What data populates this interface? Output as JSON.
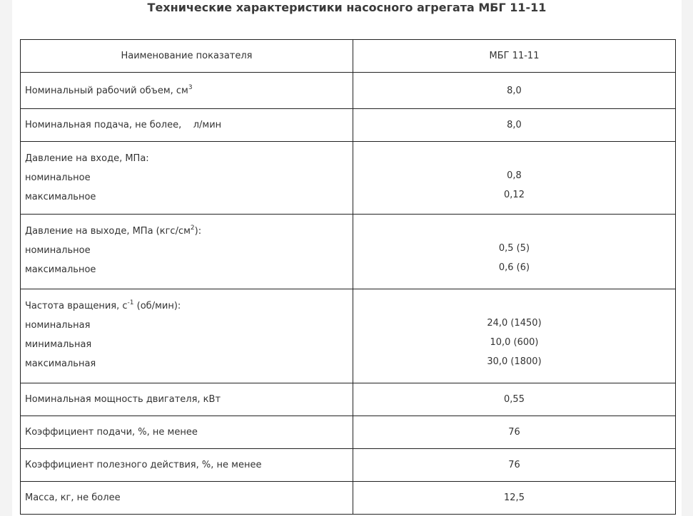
{
  "title": "Технические характеристики насосного агрегата МБГ 11-11",
  "table": {
    "header": [
      "Наименование показателя",
      "МБГ 11-11"
    ],
    "rows": [
      {
        "label": "Номинальный рабочий объем, см",
        "sup": "3",
        "after": "",
        "sub": [],
        "values": [
          "8,0"
        ]
      },
      {
        "label": "Номинальная подача, не более,    л/мин",
        "sup": "",
        "after": "",
        "sub": [],
        "values": [
          "8,0"
        ]
      },
      {
        "label": "Давление на входе, МПа:",
        "sup": "",
        "after": "",
        "sub": [
          "номинальное",
          "максимальное"
        ],
        "values": [
          "0,8",
          "0,12"
        ]
      },
      {
        "label": "Давление на выходе, МПа (кгс/см",
        "sup": "2",
        "after": "):",
        "sub": [
          "номинальное",
          "максимальное"
        ],
        "values": [
          "0,5 (5)",
          "0,6 (6)"
        ]
      },
      {
        "label": "Частота вращения, с",
        "sup": "-1",
        "after": " (об/мин):",
        "sub": [
          "номинальная",
          "минимальная",
          "максимальная"
        ],
        "values": [
          "24,0 (1450)",
          "10,0 (600)",
          "30,0 (1800)"
        ]
      },
      {
        "label": "Номинальная мощность двигателя, кВт",
        "sup": "",
        "after": "",
        "sub": [],
        "values": [
          "0,55"
        ]
      },
      {
        "label": "Коэффициент подачи, %, не менее",
        "sup": "",
        "after": "",
        "sub": [],
        "values": [
          "76"
        ]
      },
      {
        "label": "Коэффициент полезного действия, %, не менее",
        "sup": "",
        "after": "",
        "sub": [],
        "values": [
          "76"
        ]
      },
      {
        "label": "Масса, кг, не более",
        "sup": "",
        "after": "",
        "sub": [],
        "values": [
          "12,5"
        ]
      }
    ]
  }
}
